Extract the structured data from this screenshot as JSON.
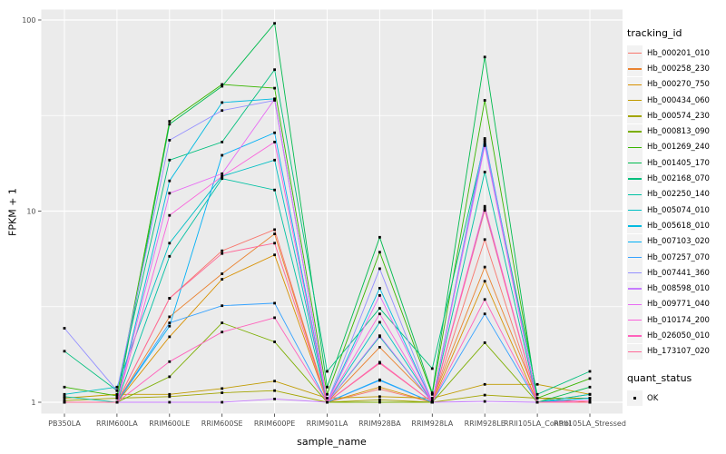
{
  "chart_data": {
    "type": "line",
    "title": "",
    "xlabel": "sample_name",
    "ylabel": "FPKM + 1",
    "y_scale": "log10",
    "y_ticks": [
      1,
      10,
      100
    ],
    "y_minor_ticks": [
      3.1623,
      31.623
    ],
    "ylim": [
      0.87,
      113
    ],
    "grid": true,
    "legend_position": "right",
    "panel_bg": "#EBEBEB",
    "grid_color": "#FFFFFF",
    "point_color": "#000000",
    "axis_text_color": "#4D4D4D",
    "categories": [
      "PB350LA",
      "RRIM600LA",
      "RRIM600LE",
      "RRIM600SE",
      "RRIM600PE",
      "RRIM901LA",
      "RRIM928BA",
      "RRIM928LA",
      "RRIM928LE",
      "RRII105LA_Control",
      "RRII105LA_Stressed"
    ],
    "legend": {
      "series_title": "tracking_id",
      "status_title": "quant_status",
      "status_label": "OK"
    },
    "series": [
      {
        "name": "Hb_000201_010",
        "color": "#F8766D",
        "values": [
          1.0,
          1.0,
          3.5,
          6.2,
          8.0,
          1.0,
          1.17,
          1.0,
          7.1,
          1.0,
          1.0
        ]
      },
      {
        "name": "Hb_000258_230",
        "color": "#EA8331",
        "values": [
          1.0,
          1.0,
          2.8,
          4.7,
          7.6,
          1.0,
          1.94,
          1.02,
          5.1,
          1.05,
          1.0
        ]
      },
      {
        "name": "Hb_000270_750",
        "color": "#D89000",
        "values": [
          1.0,
          1.0,
          2.2,
          4.4,
          5.9,
          1.0,
          1.2,
          1.0,
          4.3,
          1.0,
          1.0
        ]
      },
      {
        "name": "Hb_000434_060",
        "color": "#C09B00",
        "values": [
          1.05,
          1.1,
          1.1,
          1.18,
          1.29,
          1.05,
          1.07,
          1.05,
          1.24,
          1.24,
          1.1
        ]
      },
      {
        "name": "Hb_000574_230",
        "color": "#A3A500",
        "values": [
          1.02,
          1.05,
          1.07,
          1.12,
          1.15,
          1.0,
          1.03,
          1.0,
          1.09,
          1.05,
          1.05
        ]
      },
      {
        "name": "Hb_000813_090",
        "color": "#7CAE00",
        "values": [
          1.0,
          1.0,
          1.36,
          2.6,
          2.07,
          1.0,
          1.0,
          1.0,
          2.05,
          1.0,
          1.1
        ]
      },
      {
        "name": "Hb_001269_240",
        "color": "#39B600",
        "values": [
          1.2,
          1.08,
          29.5,
          46.0,
          44.0,
          1.1,
          6.1,
          1.1,
          38.0,
          1.05,
          1.33
        ]
      },
      {
        "name": "Hb_001405_170",
        "color": "#00BB4E",
        "values": [
          1.0,
          1.0,
          28.5,
          45.0,
          96.0,
          1.2,
          7.3,
          1.12,
          64.0,
          1.0,
          1.2
        ]
      },
      {
        "name": "Hb_002168_070",
        "color": "#00BF7D",
        "values": [
          1.85,
          1.15,
          18.5,
          23.0,
          55.0,
          1.45,
          3.1,
          1.5,
          23.0,
          1.1,
          1.45
        ]
      },
      {
        "name": "Hb_002250_140",
        "color": "#00C1A3",
        "values": [
          1.07,
          1.0,
          5.8,
          14.8,
          12.9,
          1.0,
          2.2,
          1.0,
          16.0,
          1.0,
          1.05
        ]
      },
      {
        "name": "Hb_005074_010",
        "color": "#00BFC4",
        "values": [
          1.1,
          1.2,
          6.8,
          15.2,
          18.5,
          1.0,
          2.62,
          1.0,
          10.3,
          1.0,
          1.1
        ]
      },
      {
        "name": "Hb_005618_010",
        "color": "#00BAE0",
        "values": [
          1.0,
          1.0,
          14.4,
          37.0,
          38.7,
          1.0,
          3.95,
          1.0,
          24.0,
          1.0,
          1.0
        ]
      },
      {
        "name": "Hb_007103_020",
        "color": "#00B0F6",
        "values": [
          1.0,
          1.0,
          2.5,
          19.6,
          25.7,
          1.0,
          1.31,
          1.0,
          22.5,
          1.0,
          1.05
        ]
      },
      {
        "name": "Hb_007257_070",
        "color": "#35A2FF",
        "values": [
          1.0,
          1.0,
          2.6,
          3.2,
          3.3,
          1.0,
          1.3,
          1.0,
          2.9,
          1.0,
          1.0
        ]
      },
      {
        "name": "Hb_007441_360",
        "color": "#9590FF",
        "values": [
          2.44,
          1.15,
          23.5,
          33.6,
          38.0,
          1.0,
          5.0,
          1.0,
          23.5,
          1.0,
          1.0
        ]
      },
      {
        "name": "Hb_008598_010",
        "color": "#C77CFF",
        "values": [
          1.0,
          1.0,
          1.0,
          1.0,
          1.04,
          1.0,
          2.23,
          1.0,
          1.01,
          1.0,
          1.0
        ]
      },
      {
        "name": "Hb_009771_040",
        "color": "#E76BF3",
        "values": [
          1.0,
          1.0,
          12.4,
          15.7,
          38.5,
          1.0,
          3.62,
          1.0,
          22.0,
          1.0,
          1.0
        ]
      },
      {
        "name": "Hb_010174_200",
        "color": "#FA62DB",
        "values": [
          1.0,
          1.0,
          9.5,
          15.2,
          23.0,
          1.0,
          2.9,
          1.0,
          10.6,
          1.0,
          1.02
        ]
      },
      {
        "name": "Hb_026050_010",
        "color": "#FF62BC",
        "values": [
          1.0,
          1.0,
          1.63,
          2.33,
          2.77,
          1.0,
          1.62,
          1.0,
          3.45,
          1.0,
          1.0
        ]
      },
      {
        "name": "Hb_173107_020",
        "color": "#FF6A98",
        "values": [
          1.0,
          1.0,
          3.5,
          6.0,
          6.8,
          1.0,
          1.6,
          1.0,
          10.1,
          1.0,
          1.0
        ]
      }
    ]
  }
}
